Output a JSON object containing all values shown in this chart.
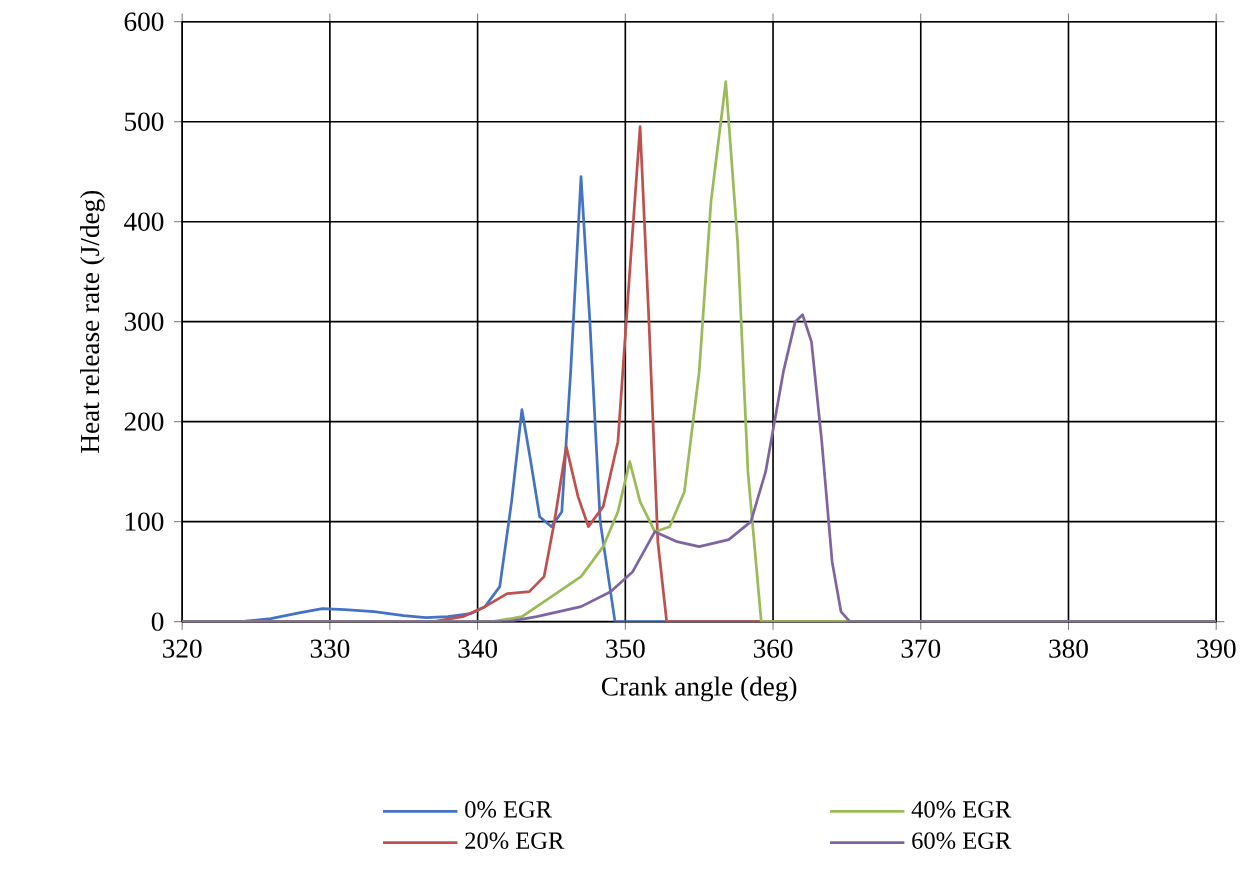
{
  "chart_data": {
    "type": "line",
    "xlabel": "Crank angle (deg)",
    "ylabel": "Heat release rate (J/deg)",
    "xlim": [
      320,
      390
    ],
    "ylim": [
      0,
      600
    ],
    "xticks": [
      320,
      330,
      340,
      350,
      360,
      370,
      380,
      390
    ],
    "yticks": [
      0,
      100,
      200,
      300,
      400,
      500,
      600
    ],
    "grid": true,
    "legend": "bottom",
    "marker": "none",
    "line_style": "solid",
    "series": [
      {
        "name": "0% EGR",
        "color": "#4472c4",
        "x": [
          320,
          324,
          326,
          328,
          329.5,
          331,
          333,
          335,
          336.5,
          338,
          339.5,
          340.5,
          341.5,
          342.3,
          343,
          343.6,
          344.2,
          345,
          345.7,
          346.3,
          347,
          347.6,
          348.3,
          349.3,
          352,
          370,
          390
        ],
        "values": [
          0,
          0,
          3,
          9,
          13,
          12,
          10,
          6,
          4,
          5,
          8,
          15,
          35,
          120,
          212,
          160,
          105,
          95,
          110,
          250,
          445,
          300,
          100,
          0,
          0,
          0,
          0
        ]
      },
      {
        "name": "20% EGR",
        "color": "#c0504d",
        "x": [
          320,
          337,
          339,
          340.5,
          342,
          343.5,
          344.5,
          345.2,
          346,
          346.8,
          347.5,
          348.5,
          349.5,
          350.3,
          351,
          351.6,
          352.2,
          352.8,
          370,
          390
        ],
        "values": [
          0,
          0,
          5,
          15,
          28,
          30,
          45,
          100,
          175,
          125,
          95,
          115,
          180,
          350,
          495,
          300,
          80,
          0,
          0,
          0
        ]
      },
      {
        "name": "40% EGR",
        "color": "#9bbb59",
        "x": [
          320,
          341,
          343,
          345,
          347,
          348.5,
          349.5,
          350.3,
          351,
          352,
          353,
          354,
          355,
          355.8,
          356.8,
          357.6,
          358.3,
          359.2,
          370,
          390
        ],
        "values": [
          0,
          0,
          5,
          25,
          45,
          75,
          110,
          160,
          120,
          90,
          95,
          130,
          250,
          420,
          540,
          380,
          150,
          0,
          0,
          0
        ]
      },
      {
        "name": "60% EGR",
        "color": "#8064a2",
        "x": [
          320,
          342,
          344,
          347,
          349,
          350.5,
          352,
          353.5,
          355,
          357,
          358.5,
          359.5,
          360.7,
          361.5,
          362,
          362.6,
          363.3,
          364,
          364.6,
          365.2,
          380,
          390
        ],
        "values": [
          0,
          0,
          5,
          15,
          30,
          50,
          90,
          80,
          75,
          82,
          100,
          150,
          250,
          300,
          307,
          280,
          180,
          60,
          10,
          0,
          0,
          0
        ]
      }
    ]
  }
}
